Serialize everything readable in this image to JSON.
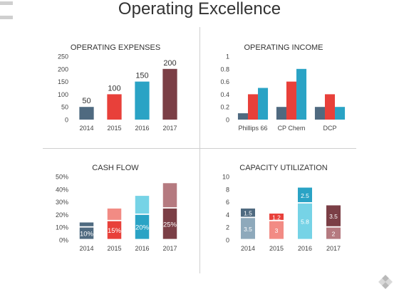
{
  "page": {
    "title": "Operating Excellence"
  },
  "colors": {
    "teal": "#2aa3c5",
    "red": "#e8403a",
    "maroon": "#7b3f46",
    "slate": "#4f6a80",
    "light_teal": "#76d3e6",
    "light_red": "#f28b84",
    "light_maroon": "#b57a80",
    "light_slate": "#8ea9bb",
    "axis_text": "#444444",
    "grid": "#e6e6e6",
    "divider": "#cfcfcf"
  },
  "chart_data": [
    {
      "id": "operating-expenses",
      "type": "bar",
      "title": "OPERATING EXPENSES",
      "categories": [
        "2014",
        "2015",
        "2016",
        "2017"
      ],
      "values": [
        50,
        100,
        150,
        200
      ],
      "data_labels": [
        "50",
        "100",
        "150",
        "200"
      ],
      "bar_colors": [
        "#4f6a80",
        "#e8403a",
        "#2aa3c5",
        "#7b3f46"
      ],
      "ylim": [
        0,
        250
      ],
      "yticks": [
        0,
        50,
        100,
        150,
        200,
        250
      ],
      "ytick_labels": [
        "0",
        "50",
        "100",
        "150",
        "200",
        "250"
      ],
      "grid": false,
      "legend": "none"
    },
    {
      "id": "operating-income",
      "type": "bar",
      "title": "OPERATING INCOME",
      "categories": [
        "Phillips 66",
        "CP Chem",
        "DCP"
      ],
      "series": [
        {
          "color": "#4f6a80",
          "values": [
            0.1,
            0.2,
            0.2
          ]
        },
        {
          "color": "#e8403a",
          "values": [
            0.4,
            0.6,
            0.4
          ]
        },
        {
          "color": "#2aa3c5",
          "values": [
            0.5,
            0.8,
            0.2
          ]
        }
      ],
      "ylim": [
        0,
        1
      ],
      "yticks": [
        0,
        0.2,
        0.4,
        0.6,
        0.8,
        1
      ],
      "ytick_labels": [
        "0",
        "0.2",
        "0.4",
        "0.6",
        "0.8",
        "1"
      ],
      "grid": false,
      "legend": "none"
    },
    {
      "id": "cash-flow",
      "type": "bar",
      "stacked": true,
      "title": "CASH FLOW",
      "categories": [
        "2014",
        "2015",
        "2016",
        "2017"
      ],
      "series": [
        {
          "values": [
            10,
            15,
            20,
            25
          ],
          "colors": [
            "#4f6a80",
            "#e8403a",
            "#2aa3c5",
            "#7b3f46"
          ],
          "data_labels": [
            "10%",
            "15%",
            "20%",
            "25%"
          ]
        },
        {
          "values": [
            4,
            10,
            15,
            20
          ],
          "colors": [
            "#4f6a80",
            "#f28b84",
            "#76d3e6",
            "#b57a80"
          ],
          "data_labels": [
            "",
            "",
            "",
            ""
          ]
        }
      ],
      "ylim": [
        0,
        50
      ],
      "yticks": [
        0,
        10,
        20,
        30,
        40,
        50
      ],
      "ytick_labels": [
        "0%",
        "10%",
        "20%",
        "30%",
        "40%",
        "50%"
      ],
      "grid": false,
      "legend": "none"
    },
    {
      "id": "capacity-utilization",
      "type": "bar",
      "stacked": true,
      "title": "CAPACITY UTILIZATION",
      "categories": [
        "2014",
        "2015",
        "2016",
        "2017"
      ],
      "series": [
        {
          "values": [
            3.5,
            3,
            5.8,
            2
          ],
          "colors": [
            "#8ea9bb",
            "#f28b84",
            "#76d3e6",
            "#b57a80"
          ],
          "data_labels": [
            "3.5",
            "3",
            "5.8",
            "2"
          ]
        },
        {
          "values": [
            1.5,
            1.2,
            2.5,
            3.5
          ],
          "colors": [
            "#4f6a80",
            "#e8403a",
            "#2aa3c5",
            "#7b3f46"
          ],
          "data_labels": [
            "1.5",
            "1.2",
            "2.5",
            "3.5"
          ]
        }
      ],
      "ylim": [
        0,
        10
      ],
      "yticks": [
        0,
        2,
        4,
        6,
        8,
        10
      ],
      "ytick_labels": [
        "0",
        "2",
        "4",
        "6",
        "8",
        "10"
      ],
      "grid": false,
      "legend": "none"
    }
  ]
}
